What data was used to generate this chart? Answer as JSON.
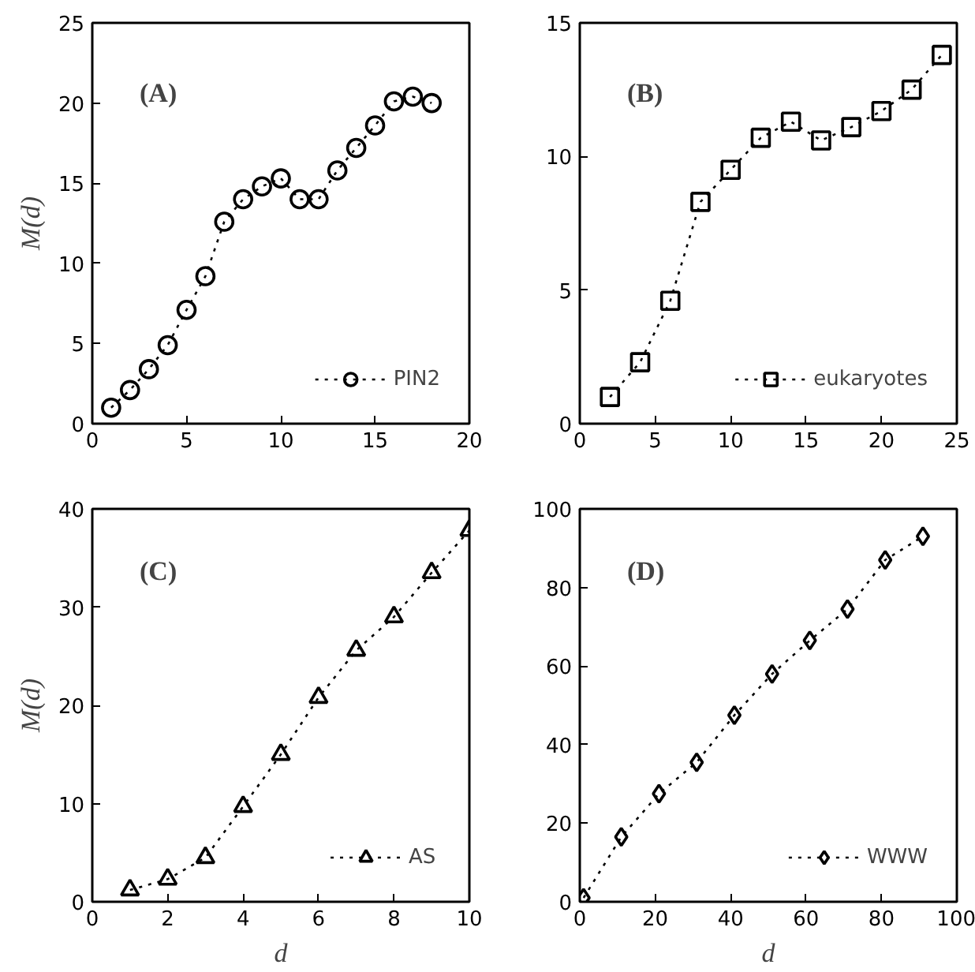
{
  "chart_data": [
    {
      "type": "line",
      "ylabel": "M(d)",
      "annotations": [
        "(A)"
      ],
      "x": [
        1,
        2,
        3,
        4,
        5,
        6,
        7,
        8,
        9,
        10,
        11,
        12,
        13,
        14,
        15,
        16,
        17,
        18
      ],
      "series": [
        {
          "name": "PIN2",
          "color": "#000000",
          "values": [
            1.0,
            2.1,
            3.4,
            4.9,
            7.1,
            9.2,
            12.6,
            14.0,
            14.8,
            15.3,
            14.0,
            14.0,
            15.8,
            17.2,
            18.6,
            20.1,
            20.4,
            20.0
          ]
        }
      ],
      "xlim": [
        0,
        20
      ],
      "xticks": [
        0,
        5,
        10,
        15,
        20
      ],
      "ylim": [
        0,
        25
      ],
      "yticks": [
        0,
        5,
        10,
        15,
        20,
        25
      ],
      "marker": "circle",
      "line_style": "dotted",
      "legend": "bottom right",
      "grid": false
    },
    {
      "type": "line",
      "annotations": [
        "(B)"
      ],
      "x": [
        2,
        4,
        6,
        8,
        10,
        12,
        14,
        16,
        18,
        20,
        22,
        24
      ],
      "series": [
        {
          "name": "eukaryotes",
          "color": "#000000",
          "values": [
            1.0,
            2.3,
            4.6,
            8.3,
            9.5,
            10.7,
            11.3,
            10.6,
            11.1,
            11.7,
            12.5,
            13.8
          ]
        }
      ],
      "xlim": [
        0,
        25
      ],
      "xticks": [
        0,
        5,
        10,
        15,
        20,
        25
      ],
      "ylim": [
        0,
        15
      ],
      "yticks": [
        0,
        5,
        10,
        15
      ],
      "marker": "square",
      "line_style": "dotted",
      "legend": "bottom right",
      "grid": false
    },
    {
      "type": "line",
      "xlabel": "d",
      "ylabel": "M(d)",
      "annotations": [
        "(C)"
      ],
      "x": [
        1,
        2,
        3,
        4,
        5,
        6,
        7,
        8,
        9,
        10
      ],
      "series": [
        {
          "name": "AS",
          "color": "#000000",
          "values": [
            1.2,
            2.3,
            4.5,
            9.7,
            15.0,
            20.8,
            25.6,
            29.0,
            33.5,
            37.8
          ]
        }
      ],
      "xlim": [
        0,
        10
      ],
      "xticks": [
        0,
        2,
        4,
        6,
        8,
        10
      ],
      "ylim": [
        0,
        40
      ],
      "yticks": [
        0,
        10,
        20,
        30,
        40
      ],
      "marker": "triangle",
      "line_style": "dotted",
      "legend": "bottom right",
      "grid": false
    },
    {
      "type": "line",
      "xlabel": "d",
      "annotations": [
        "(D)"
      ],
      "x": [
        1,
        11,
        21,
        31,
        41,
        51,
        61,
        71,
        81,
        91
      ],
      "series": [
        {
          "name": "WWW",
          "color": "#000000",
          "values": [
            1,
            16.5,
            27.5,
            35.5,
            47.5,
            58,
            66.5,
            74.5,
            87,
            93
          ]
        }
      ],
      "xlim": [
        0,
        100
      ],
      "xticks": [
        0,
        20,
        40,
        60,
        80,
        100
      ],
      "ylim": [
        0,
        100
      ],
      "yticks": [
        0,
        20,
        40,
        60,
        80,
        100
      ],
      "marker": "diamond",
      "line_style": "dotted",
      "legend": "bottom right",
      "grid": false
    }
  ]
}
